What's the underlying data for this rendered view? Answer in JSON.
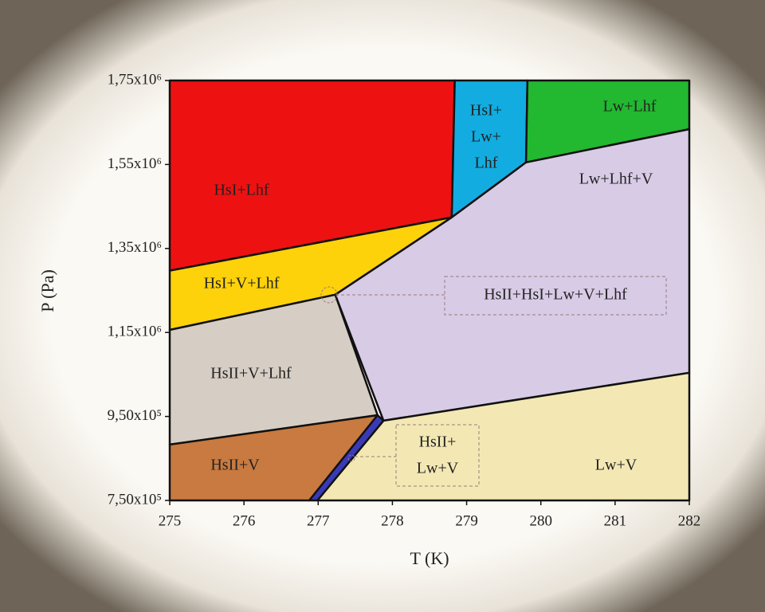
{
  "chart_data": {
    "type": "phase-diagram",
    "x_label": "T (K)",
    "y_label": "P (Pa)",
    "xlim": [
      275,
      282
    ],
    "ylim": [
      750000,
      1750000
    ],
    "xticks": [
      275,
      276,
      277,
      278,
      279,
      280,
      281,
      282
    ],
    "yticks": [
      {
        "value": 750000,
        "label": "7,50x10⁵"
      },
      {
        "value": 950000,
        "label": "9,50x10⁵"
      },
      {
        "value": 1150000,
        "label": "1,15x10⁶"
      },
      {
        "value": 1350000,
        "label": "1,35x10⁶"
      },
      {
        "value": 1550000,
        "label": "1,55x10⁶"
      },
      {
        "value": 1750000,
        "label": "1,75x10⁶"
      }
    ],
    "regions": [
      {
        "label": [
          "HsI+Lhf"
        ],
        "color": "#ee1111",
        "x": [
          275,
          278.84,
          278.8,
          275
        ],
        "y": [
          1750000,
          1750000,
          1424000,
          1297000
        ]
      },
      {
        "label": [
          "HsI+V+Lhf"
        ],
        "color": "#fdd20a",
        "x": [
          275,
          278.8,
          277.23,
          275
        ],
        "y": [
          1297000,
          1424000,
          1240000,
          1156000
        ]
      },
      {
        "label": [
          "HsI+",
          "Lw+",
          "Lhf"
        ],
        "color": "#12ace0",
        "x": [
          278.84,
          279.82,
          279.8,
          278.8
        ],
        "y": [
          1750000,
          1750000,
          1555000,
          1424000
        ]
      },
      {
        "label": [
          "Lw+Lhf"
        ],
        "color": "#22b830",
        "x": [
          279.82,
          282,
          282,
          279.8
        ],
        "y": [
          1750000,
          1750000,
          1634000,
          1555000
        ]
      },
      {
        "label": [
          "Lw+Lhf+V"
        ],
        "color": "#d8cbe6",
        "x": [
          279.8,
          282,
          282,
          277.88,
          277.23,
          278.8
        ],
        "y": [
          1555000,
          1634000,
          1054000,
          940000,
          1240000,
          1424000
        ]
      },
      {
        "label": [
          "HsII+V+Lhf"
        ],
        "color": "#d6cec4",
        "x": [
          275,
          277.23,
          277.8,
          275
        ],
        "y": [
          1156000,
          1240000,
          953000,
          883000
        ]
      },
      {
        "label": [
          "HsII+V"
        ],
        "color": "#c87a40",
        "x": [
          275,
          277.8,
          276.88,
          275
        ],
        "y": [
          883000,
          953000,
          750000,
          750000
        ]
      },
      {
        "color": "#3a3ab8",
        "x": [
          277.8,
          277.88,
          276.99,
          276.88
        ],
        "y": [
          953000,
          940000,
          750000,
          750000
        ]
      },
      {
        "label": [
          "Lw+V"
        ],
        "color": "#f3e8b4",
        "x": [
          277.88,
          282,
          282,
          276.99
        ],
        "y": [
          940000,
          1054000,
          750000,
          750000
        ]
      }
    ],
    "annotations": [
      {
        "text": [
          "HsII+HsI+Lw+V+Lhf"
        ]
      },
      {
        "text": [
          "HsII+",
          "Lw+V"
        ]
      }
    ]
  }
}
